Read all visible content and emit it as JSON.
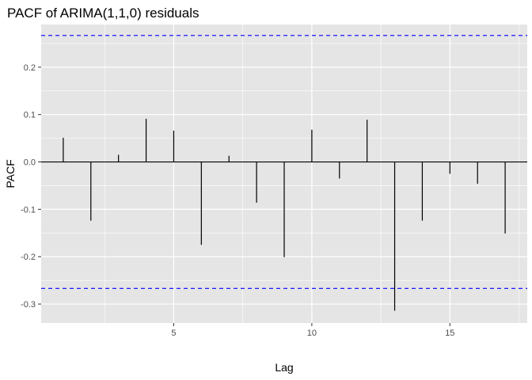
{
  "chart_data": {
    "type": "bar",
    "title": "PACF of ARIMA(1,1,0) residuals",
    "xlabel": "Lag",
    "ylabel": "PACF",
    "x": [
      1,
      2,
      3,
      4,
      5,
      6,
      7,
      8,
      9,
      10,
      11,
      12,
      13,
      14,
      15,
      16,
      17
    ],
    "values": [
      0.051,
      -0.124,
      0.015,
      0.091,
      0.066,
      -0.175,
      0.013,
      -0.086,
      -0.201,
      0.068,
      -0.035,
      0.089,
      -0.314,
      -0.124,
      -0.025,
      -0.046,
      -0.151
    ],
    "confidence_bound": 0.267,
    "xlim": [
      0.2,
      17.8
    ],
    "ylim": [
      -0.34,
      0.29
    ],
    "x_ticks": [
      5,
      10,
      15
    ],
    "x_tick_labels": [
      "5",
      "10",
      "15"
    ],
    "y_ticks": [
      -0.3,
      -0.2,
      -0.1,
      0.0,
      0.1,
      0.2
    ],
    "y_tick_labels": [
      "-0.3",
      "-0.2",
      "-0.1",
      "0.0",
      "0.1",
      "0.2"
    ],
    "grid": true,
    "legend": "none",
    "colors": {
      "panel": "#e5e5e5",
      "grid": "#ffffff",
      "bar": "#000000",
      "confidence_line": "#0000ff"
    }
  }
}
